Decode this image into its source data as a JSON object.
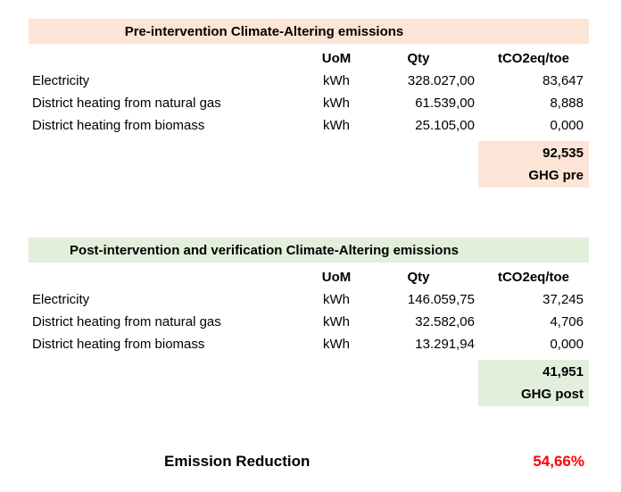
{
  "columns": {
    "uom": "UoM",
    "qty": "Qty",
    "tco2": "tCO2eq/toe"
  },
  "sections": [
    {
      "title": "Pre-intervention Climate-Altering emissions",
      "accent": "#FCE4D6",
      "rows": [
        {
          "label": "Electricity",
          "uom": "kWh",
          "qty": "328.027,00",
          "tco2": "83,647"
        },
        {
          "label": "District heating from natural gas",
          "uom": "kWh",
          "qty": "61.539,00",
          "tco2": "8,888"
        },
        {
          "label": "District heating from biomass",
          "uom": "kWh",
          "qty": "25.105,00",
          "tco2": "0,000"
        }
      ],
      "total_value": "92,535",
      "total_label": "GHG pre"
    },
    {
      "title": "Post-intervention and verification Climate-Altering emissions",
      "accent": "#E2EFDA",
      "rows": [
        {
          "label": "Electricity",
          "uom": "kWh",
          "qty": "146.059,75",
          "tco2": "37,245"
        },
        {
          "label": "District heating from natural gas",
          "uom": "kWh",
          "qty": "32.582,06",
          "tco2": "4,706"
        },
        {
          "label": "District heating from biomass",
          "uom": "kWh",
          "qty": "13.291,94",
          "tco2": "0,000"
        }
      ],
      "total_value": "41,951",
      "total_label": "GHG post"
    }
  ],
  "footer": {
    "label": "Emission Reduction",
    "value": "54,66%",
    "value_color": "#FF0000"
  },
  "colors": {
    "pre_accent": "#FCE4D6",
    "post_accent": "#E2EFDA",
    "text": "#000000",
    "background": "#FFFFFF"
  }
}
